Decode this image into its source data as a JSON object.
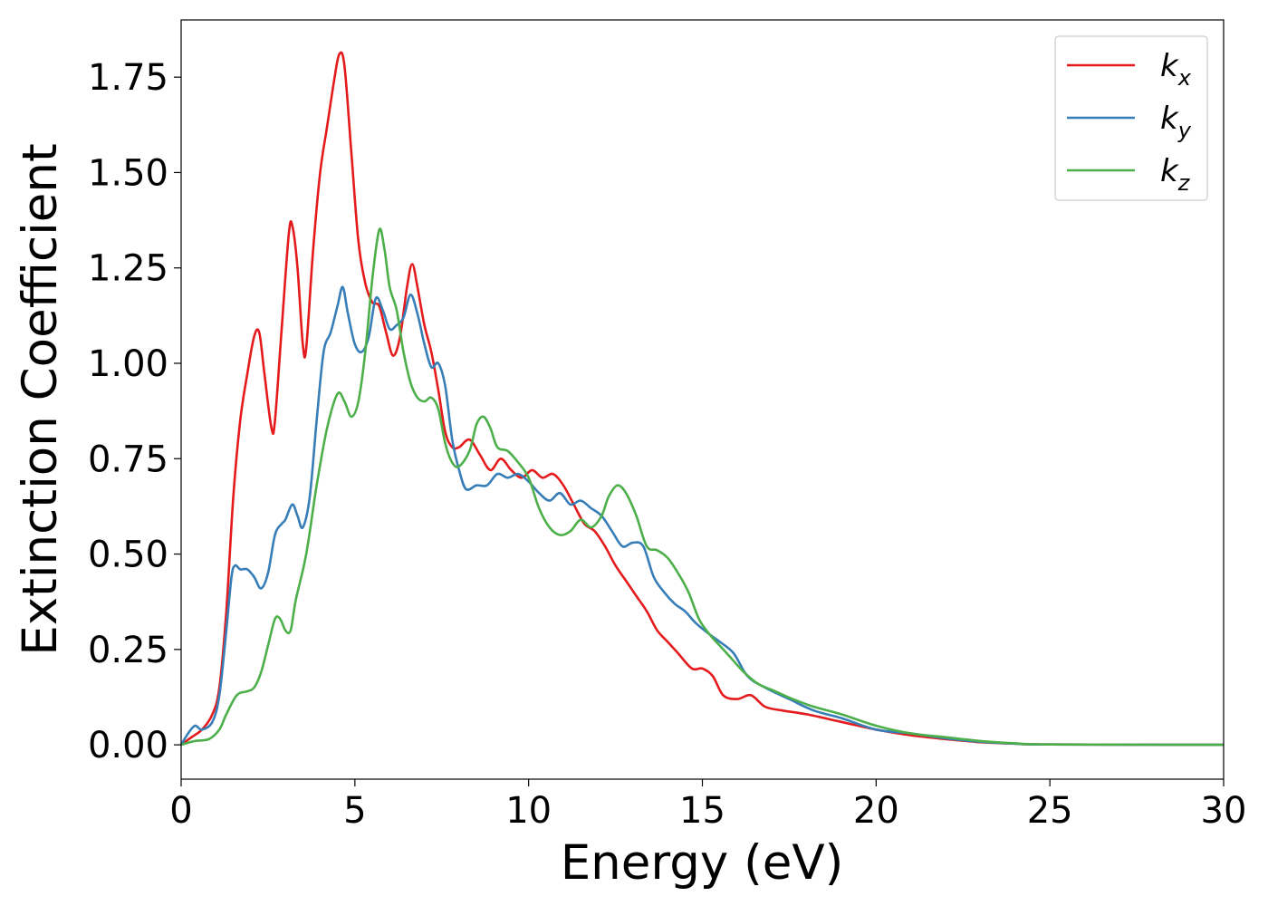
{
  "chart_data": {
    "type": "line",
    "xlabel": "Energy (eV)",
    "ylabel": "Extinction Coefficient",
    "xlim": [
      0,
      30
    ],
    "ylim": [
      -0.09,
      1.9
    ],
    "xticks": [
      0,
      5,
      10,
      15,
      20,
      25,
      30
    ],
    "xtick_labels": [
      "0",
      "5",
      "10",
      "15",
      "20",
      "25",
      "30"
    ],
    "yticks": [
      0,
      0.25,
      0.5,
      0.75,
      1.0,
      1.25,
      1.5,
      1.75
    ],
    "ytick_labels": [
      "0.00",
      "0.25",
      "0.50",
      "0.75",
      "1.00",
      "1.25",
      "1.50",
      "1.75"
    ],
    "grid": false,
    "legend_position": "top-right",
    "series": [
      {
        "name": "k",
        "subscript": "x",
        "color": "#e41a1c",
        "points": [
          [
            0,
            0
          ],
          [
            0.3,
            0.02
          ],
          [
            0.6,
            0.04
          ],
          [
            0.9,
            0.08
          ],
          [
            1.1,
            0.15
          ],
          [
            1.3,
            0.35
          ],
          [
            1.5,
            0.65
          ],
          [
            1.7,
            0.85
          ],
          [
            1.9,
            0.97
          ],
          [
            2.1,
            1.07
          ],
          [
            2.25,
            1.08
          ],
          [
            2.4,
            0.97
          ],
          [
            2.6,
            0.83
          ],
          [
            2.7,
            0.85
          ],
          [
            2.9,
            1.1
          ],
          [
            3.1,
            1.34
          ],
          [
            3.2,
            1.36
          ],
          [
            3.35,
            1.25
          ],
          [
            3.5,
            1.05
          ],
          [
            3.6,
            1.04
          ],
          [
            3.8,
            1.3
          ],
          [
            4.0,
            1.5
          ],
          [
            4.2,
            1.62
          ],
          [
            4.4,
            1.74
          ],
          [
            4.55,
            1.81
          ],
          [
            4.7,
            1.78
          ],
          [
            4.9,
            1.55
          ],
          [
            5.1,
            1.32
          ],
          [
            5.3,
            1.21
          ],
          [
            5.5,
            1.16
          ],
          [
            5.7,
            1.15
          ],
          [
            5.9,
            1.08
          ],
          [
            6.1,
            1.02
          ],
          [
            6.3,
            1.07
          ],
          [
            6.5,
            1.2
          ],
          [
            6.65,
            1.26
          ],
          [
            6.8,
            1.2
          ],
          [
            7.0,
            1.1
          ],
          [
            7.2,
            1.03
          ],
          [
            7.4,
            0.93
          ],
          [
            7.6,
            0.82
          ],
          [
            7.8,
            0.78
          ],
          [
            8.0,
            0.78
          ],
          [
            8.3,
            0.8
          ],
          [
            8.6,
            0.76
          ],
          [
            8.9,
            0.72
          ],
          [
            9.2,
            0.75
          ],
          [
            9.5,
            0.72
          ],
          [
            9.8,
            0.7
          ],
          [
            10.1,
            0.72
          ],
          [
            10.4,
            0.7
          ],
          [
            10.7,
            0.71
          ],
          [
            11.0,
            0.68
          ],
          [
            11.3,
            0.63
          ],
          [
            11.6,
            0.58
          ],
          [
            11.9,
            0.56
          ],
          [
            12.2,
            0.52
          ],
          [
            12.5,
            0.47
          ],
          [
            12.8,
            0.43
          ],
          [
            13.1,
            0.39
          ],
          [
            13.4,
            0.35
          ],
          [
            13.7,
            0.3
          ],
          [
            14.0,
            0.27
          ],
          [
            14.3,
            0.24
          ],
          [
            14.7,
            0.2
          ],
          [
            15.0,
            0.2
          ],
          [
            15.3,
            0.18
          ],
          [
            15.6,
            0.13
          ],
          [
            16.0,
            0.12
          ],
          [
            16.4,
            0.13
          ],
          [
            16.8,
            0.1
          ],
          [
            17.3,
            0.09
          ],
          [
            18.0,
            0.08
          ],
          [
            19.0,
            0.06
          ],
          [
            20.0,
            0.04
          ],
          [
            21.0,
            0.025
          ],
          [
            22.0,
            0.015
          ],
          [
            23.0,
            0.007
          ],
          [
            24.0,
            0.003
          ],
          [
            25.0,
            0.001
          ],
          [
            30.0,
            0.0
          ]
        ]
      },
      {
        "name": "k",
        "subscript": "y",
        "color": "#377eb8",
        "points": [
          [
            0,
            0
          ],
          [
            0.2,
            0.03
          ],
          [
            0.4,
            0.05
          ],
          [
            0.6,
            0.04
          ],
          [
            0.9,
            0.06
          ],
          [
            1.1,
            0.13
          ],
          [
            1.3,
            0.3
          ],
          [
            1.45,
            0.44
          ],
          [
            1.55,
            0.47
          ],
          [
            1.7,
            0.46
          ],
          [
            1.9,
            0.46
          ],
          [
            2.1,
            0.44
          ],
          [
            2.3,
            0.41
          ],
          [
            2.5,
            0.45
          ],
          [
            2.7,
            0.55
          ],
          [
            2.9,
            0.58
          ],
          [
            3.0,
            0.59
          ],
          [
            3.2,
            0.63
          ],
          [
            3.35,
            0.6
          ],
          [
            3.5,
            0.57
          ],
          [
            3.7,
            0.65
          ],
          [
            3.9,
            0.85
          ],
          [
            4.1,
            1.03
          ],
          [
            4.3,
            1.08
          ],
          [
            4.5,
            1.15
          ],
          [
            4.65,
            1.2
          ],
          [
            4.8,
            1.13
          ],
          [
            5.0,
            1.05
          ],
          [
            5.2,
            1.03
          ],
          [
            5.4,
            1.07
          ],
          [
            5.6,
            1.17
          ],
          [
            5.8,
            1.14
          ],
          [
            6.0,
            1.09
          ],
          [
            6.2,
            1.1
          ],
          [
            6.4,
            1.12
          ],
          [
            6.6,
            1.18
          ],
          [
            6.8,
            1.13
          ],
          [
            7.0,
            1.05
          ],
          [
            7.2,
            0.99
          ],
          [
            7.4,
            1.0
          ],
          [
            7.6,
            0.94
          ],
          [
            7.8,
            0.8
          ],
          [
            8.0,
            0.72
          ],
          [
            8.2,
            0.67
          ],
          [
            8.5,
            0.68
          ],
          [
            8.8,
            0.68
          ],
          [
            9.1,
            0.71
          ],
          [
            9.4,
            0.7
          ],
          [
            9.7,
            0.71
          ],
          [
            10.0,
            0.69
          ],
          [
            10.3,
            0.66
          ],
          [
            10.6,
            0.64
          ],
          [
            10.9,
            0.66
          ],
          [
            11.2,
            0.63
          ],
          [
            11.5,
            0.64
          ],
          [
            11.8,
            0.62
          ],
          [
            12.1,
            0.6
          ],
          [
            12.4,
            0.56
          ],
          [
            12.7,
            0.52
          ],
          [
            13.0,
            0.53
          ],
          [
            13.3,
            0.52
          ],
          [
            13.6,
            0.44
          ],
          [
            13.9,
            0.4
          ],
          [
            14.2,
            0.37
          ],
          [
            14.5,
            0.35
          ],
          [
            14.8,
            0.32
          ],
          [
            15.2,
            0.29
          ],
          [
            15.5,
            0.27
          ],
          [
            15.9,
            0.24
          ],
          [
            16.3,
            0.18
          ],
          [
            16.8,
            0.15
          ],
          [
            17.5,
            0.12
          ],
          [
            18.2,
            0.09
          ],
          [
            19.0,
            0.07
          ],
          [
            20.0,
            0.04
          ],
          [
            21.0,
            0.03
          ],
          [
            22.0,
            0.017
          ],
          [
            23.0,
            0.008
          ],
          [
            24.0,
            0.003
          ],
          [
            25.0,
            0.001
          ],
          [
            30.0,
            0.0
          ]
        ]
      },
      {
        "name": "k",
        "subscript": "z",
        "color": "#4daf4a",
        "points": [
          [
            0,
            0
          ],
          [
            0.4,
            0.01
          ],
          [
            0.8,
            0.015
          ],
          [
            1.1,
            0.04
          ],
          [
            1.3,
            0.08
          ],
          [
            1.6,
            0.13
          ],
          [
            1.9,
            0.14
          ],
          [
            2.1,
            0.15
          ],
          [
            2.3,
            0.19
          ],
          [
            2.5,
            0.26
          ],
          [
            2.7,
            0.33
          ],
          [
            2.85,
            0.33
          ],
          [
            3.0,
            0.3
          ],
          [
            3.15,
            0.3
          ],
          [
            3.3,
            0.38
          ],
          [
            3.6,
            0.5
          ],
          [
            3.9,
            0.68
          ],
          [
            4.2,
            0.83
          ],
          [
            4.5,
            0.92
          ],
          [
            4.7,
            0.9
          ],
          [
            4.9,
            0.86
          ],
          [
            5.1,
            0.9
          ],
          [
            5.3,
            1.03
          ],
          [
            5.5,
            1.22
          ],
          [
            5.7,
            1.35
          ],
          [
            5.85,
            1.3
          ],
          [
            6.0,
            1.2
          ],
          [
            6.2,
            1.14
          ],
          [
            6.4,
            1.03
          ],
          [
            6.6,
            0.95
          ],
          [
            6.8,
            0.91
          ],
          [
            7.0,
            0.9
          ],
          [
            7.2,
            0.91
          ],
          [
            7.4,
            0.88
          ],
          [
            7.6,
            0.79
          ],
          [
            7.8,
            0.74
          ],
          [
            8.0,
            0.73
          ],
          [
            8.3,
            0.77
          ],
          [
            8.5,
            0.84
          ],
          [
            8.7,
            0.86
          ],
          [
            8.9,
            0.83
          ],
          [
            9.1,
            0.78
          ],
          [
            9.4,
            0.77
          ],
          [
            9.7,
            0.74
          ],
          [
            10.0,
            0.7
          ],
          [
            10.3,
            0.62
          ],
          [
            10.6,
            0.57
          ],
          [
            10.9,
            0.55
          ],
          [
            11.2,
            0.56
          ],
          [
            11.5,
            0.59
          ],
          [
            11.8,
            0.57
          ],
          [
            12.1,
            0.6
          ],
          [
            12.3,
            0.65
          ],
          [
            12.55,
            0.68
          ],
          [
            12.8,
            0.66
          ],
          [
            13.1,
            0.6
          ],
          [
            13.4,
            0.52
          ],
          [
            13.7,
            0.51
          ],
          [
            14.0,
            0.49
          ],
          [
            14.3,
            0.45
          ],
          [
            14.6,
            0.4
          ],
          [
            14.9,
            0.33
          ],
          [
            15.2,
            0.29
          ],
          [
            15.5,
            0.26
          ],
          [
            15.8,
            0.23
          ],
          [
            16.2,
            0.19
          ],
          [
            16.6,
            0.16
          ],
          [
            17.1,
            0.14
          ],
          [
            17.6,
            0.12
          ],
          [
            18.2,
            0.1
          ],
          [
            19.0,
            0.08
          ],
          [
            20.0,
            0.05
          ],
          [
            21.0,
            0.03
          ],
          [
            22.0,
            0.02
          ],
          [
            23.0,
            0.01
          ],
          [
            24.0,
            0.004
          ],
          [
            25.0,
            0.001
          ],
          [
            30.0,
            0.0
          ]
        ]
      }
    ]
  }
}
